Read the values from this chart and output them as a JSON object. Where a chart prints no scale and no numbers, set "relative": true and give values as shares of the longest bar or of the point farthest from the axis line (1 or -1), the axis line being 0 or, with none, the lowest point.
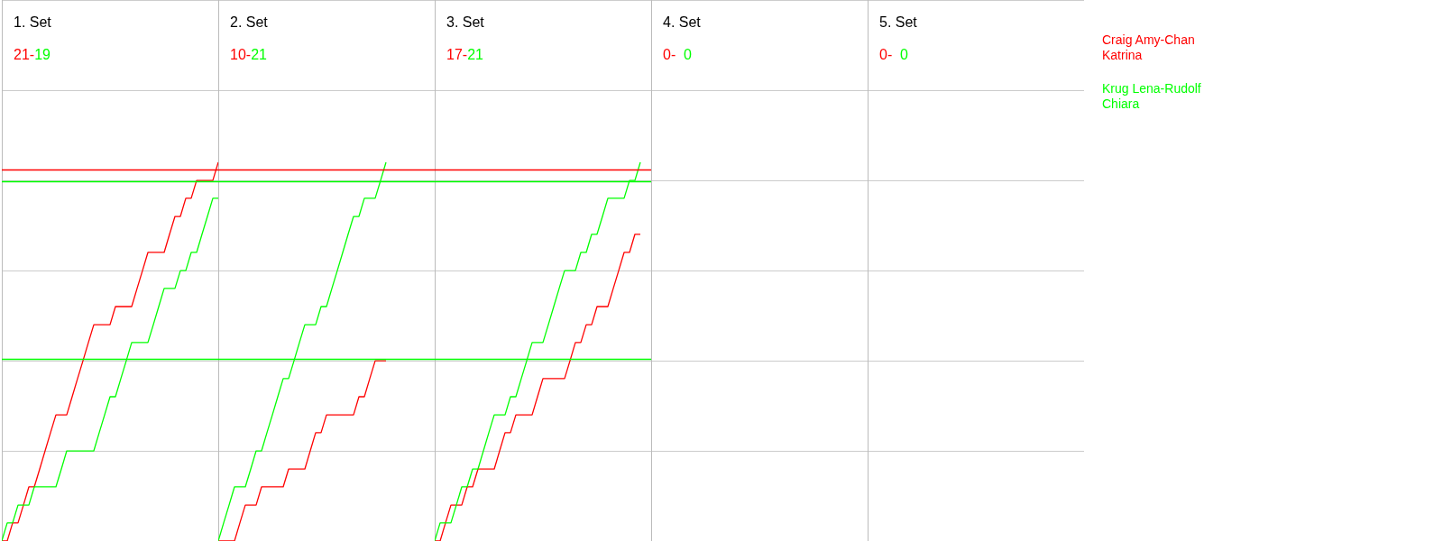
{
  "chart_data": [
    {
      "type": "line",
      "relative": true,
      "title": "1. Set",
      "subtitle": "21-19",
      "grid": true,
      "categories": [
        null,
        null,
        null,
        null,
        null,
        null,
        null,
        null,
        null,
        null,
        null,
        null,
        null,
        null,
        null,
        null,
        null,
        null,
        null,
        null,
        null,
        null,
        null,
        null,
        null,
        null,
        null,
        null,
        null,
        null,
        null,
        null,
        null,
        null,
        null,
        null,
        null,
        null,
        null,
        null,
        null
      ],
      "series": [
        {
          "name": "Craig Amy-Chan Katrina",
          "color": "#ff0000",
          "values": [
            0,
            0,
            0.048,
            0.048,
            0.095,
            0.143,
            0.143,
            0.19,
            0.238,
            0.286,
            0.333,
            0.333,
            0.333,
            0.381,
            0.429,
            0.476,
            0.524,
            0.571,
            0.571,
            0.571,
            0.571,
            0.619,
            0.619,
            0.619,
            0.619,
            0.667,
            0.714,
            0.762,
            0.762,
            0.762,
            0.762,
            0.81,
            0.857,
            0.857,
            0.905,
            0.905,
            0.952,
            0.952,
            0.952,
            0.952,
            1
          ]
        },
        {
          "name": "Krug Lena-Rudolf Chiara",
          "color": "#00ff00",
          "values": [
            0,
            0.048,
            0.048,
            0.095,
            0.095,
            0.095,
            0.143,
            0.143,
            0.143,
            0.143,
            0.143,
            0.19,
            0.238,
            0.238,
            0.238,
            0.238,
            0.238,
            0.238,
            0.286,
            0.333,
            0.381,
            0.381,
            0.429,
            0.476,
            0.524,
            0.524,
            0.524,
            0.524,
            0.571,
            0.619,
            0.667,
            0.667,
            0.667,
            0.714,
            0.714,
            0.762,
            0.762,
            0.81,
            0.857,
            0.905,
            0.905
          ]
        }
      ],
      "ref_lines": [
        {
          "axis": "y",
          "value": 0.976,
          "color": "#ff0000"
        },
        {
          "axis": "y",
          "value": 0.952,
          "color": "#00ff00"
        },
        {
          "axis": "y",
          "value": 0.476,
          "color": "#00ff00"
        }
      ]
    },
    {
      "type": "line",
      "relative": true,
      "title": "2. Set",
      "subtitle": "10-21",
      "grid": true,
      "categories": [
        null,
        null,
        null,
        null,
        null,
        null,
        null,
        null,
        null,
        null,
        null,
        null,
        null,
        null,
        null,
        null,
        null,
        null,
        null,
        null,
        null,
        null,
        null,
        null,
        null,
        null,
        null,
        null,
        null,
        null,
        null,
        null,
        null,
        null,
        null,
        null,
        null,
        null,
        null,
        null,
        null
      ],
      "series": [
        {
          "color": "#ff0000",
          "values": [
            0,
            0,
            0,
            0,
            0.048,
            0.095,
            0.095,
            0.095,
            0.143,
            0.143,
            0.143,
            0.143,
            0.143,
            0.19,
            0.19,
            0.19,
            0.19,
            0.238,
            0.286,
            0.286,
            0.333,
            0.333,
            0.333,
            0.333,
            0.333,
            0.333,
            0.381,
            0.381,
            0.429,
            0.476,
            0.476,
            0.476,
            null,
            null,
            null,
            null,
            null,
            null,
            null,
            null,
            null
          ]
        },
        {
          "color": "#00ff00",
          "values": [
            0,
            0.048,
            0.095,
            0.143,
            0.143,
            0.143,
            0.19,
            0.238,
            0.238,
            0.286,
            0.333,
            0.381,
            0.429,
            0.429,
            0.476,
            0.524,
            0.571,
            0.571,
            0.571,
            0.619,
            0.619,
            0.667,
            0.714,
            0.762,
            0.81,
            0.857,
            0.857,
            0.905,
            0.905,
            0.905,
            0.952,
            1,
            null,
            null,
            null,
            null,
            null,
            null,
            null,
            null,
            null
          ]
        }
      ],
      "ref_lines": [
        {
          "axis": "y",
          "value": 0.976,
          "color": "#ff0000"
        },
        {
          "axis": "y",
          "value": 0.952,
          "color": "#00ff00"
        },
        {
          "axis": "y",
          "value": 0.476,
          "color": "#00ff00"
        }
      ]
    },
    {
      "type": "line",
      "relative": true,
      "title": "3. Set",
      "subtitle": "17-21",
      "grid": true,
      "categories": [
        null,
        null,
        null,
        null,
        null,
        null,
        null,
        null,
        null,
        null,
        null,
        null,
        null,
        null,
        null,
        null,
        null,
        null,
        null,
        null,
        null,
        null,
        null,
        null,
        null,
        null,
        null,
        null,
        null,
        null,
        null,
        null,
        null,
        null,
        null,
        null,
        null,
        null,
        null,
        null,
        null
      ],
      "series": [
        {
          "color": "#ff0000",
          "values": [
            0,
            0,
            0.048,
            0.095,
            0.095,
            0.095,
            0.143,
            0.143,
            0.19,
            0.19,
            0.19,
            0.19,
            0.238,
            0.286,
            0.286,
            0.333,
            0.333,
            0.333,
            0.333,
            0.381,
            0.429,
            0.429,
            0.429,
            0.429,
            0.429,
            0.476,
            0.524,
            0.524,
            0.571,
            0.571,
            0.619,
            0.619,
            0.619,
            0.667,
            0.714,
            0.762,
            0.762,
            0.81,
            0.81,
            null,
            null
          ]
        },
        {
          "color": "#00ff00",
          "values": [
            0,
            0.048,
            0.048,
            0.048,
            0.095,
            0.143,
            0.143,
            0.19,
            0.19,
            0.238,
            0.286,
            0.333,
            0.333,
            0.333,
            0.381,
            0.381,
            0.429,
            0.476,
            0.524,
            0.524,
            0.524,
            0.571,
            0.619,
            0.667,
            0.714,
            0.714,
            0.714,
            0.762,
            0.762,
            0.81,
            0.81,
            0.857,
            0.905,
            0.905,
            0.905,
            0.905,
            0.952,
            0.952,
            1,
            null,
            null
          ]
        }
      ],
      "ref_lines": [
        {
          "axis": "y",
          "value": 0.976,
          "color": "#ff0000"
        },
        {
          "axis": "y",
          "value": 0.952,
          "color": "#00ff00"
        },
        {
          "axis": "y",
          "value": 0.476,
          "color": "#00ff00"
        }
      ]
    },
    {
      "type": "other",
      "title": "4. Set",
      "subtitle": "0-  0"
    },
    {
      "type": "other",
      "title": "5. Set",
      "subtitle": "0-  0"
    }
  ]
}
